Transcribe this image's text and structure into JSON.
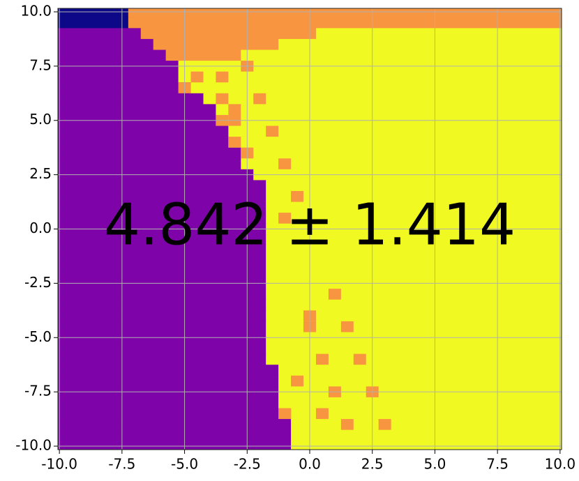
{
  "chart_data": {
    "type": "heatmap",
    "annotation": "4.842 ± 1.414",
    "xlim": [
      -10.06,
      10.06
    ],
    "ylim": [
      -10.16,
      10.16
    ],
    "xticks": [
      {
        "value": -10,
        "label": "-10.0"
      },
      -7.5,
      {
        "value": -5,
        "label": "-5.0"
      },
      -2.5,
      {
        "value": 0,
        "label": "0.0"
      },
      2.5,
      {
        "value": 5,
        "label": "5.0"
      },
      7.5,
      {
        "value": 10,
        "label": "10.0"
      }
    ],
    "yticks": [
      {
        "value": -10,
        "label": "-10.0"
      },
      -7.5,
      {
        "value": -5,
        "label": "-5.0"
      },
      -2.5,
      {
        "value": 0,
        "label": "0.0"
      },
      2.5,
      {
        "value": 5,
        "label": "5.0"
      },
      7.5,
      {
        "value": 10,
        "label": "10.0"
      }
    ],
    "grid": true,
    "cell": 0.5,
    "colors": [
      "#0d0887",
      "#7e03a8",
      "#f89540",
      "#f0f921"
    ],
    "rows": [
      {
        "y": 10.0,
        "ends": [
          -7.25,
          -7.25,
          10.25,
          10.25
        ]
      },
      {
        "y": 9.5,
        "ends": [
          -7.25,
          -7.25,
          10.25,
          10.25
        ]
      },
      {
        "y": 9.0,
        "ends": [
          -10.25,
          -6.75,
          0.25,
          10.25
        ]
      },
      {
        "y": 8.5,
        "ends": [
          -10.25,
          -6.25,
          -1.25,
          10.25
        ]
      },
      {
        "y": 8.0,
        "ends": [
          -10.25,
          -5.75,
          -2.75,
          10.25
        ]
      },
      {
        "y": 7.5,
        "ends": [
          -10.25,
          -5.25,
          -5.25,
          10.25
        ]
      },
      {
        "y": 7.0,
        "ends": [
          -10.25,
          -5.25,
          -5.25,
          10.25
        ]
      },
      {
        "y": 6.5,
        "ends": [
          -10.25,
          -4.75,
          -4.75,
          10.25
        ]
      },
      {
        "y": 6.0,
        "ends": [
          -10.25,
          -4.25,
          -4.25,
          10.25
        ]
      },
      {
        "y": 5.5,
        "ends": [
          -10.25,
          -3.75,
          -3.75,
          10.25
        ]
      },
      {
        "y": 5.0,
        "ends": [
          -10.25,
          -3.75,
          -3.75,
          10.25
        ]
      },
      {
        "y": 4.5,
        "ends": [
          -10.25,
          -3.25,
          -3.25,
          10.25
        ]
      },
      {
        "y": 4.0,
        "ends": [
          -10.25,
          -3.25,
          -3.25,
          10.25
        ]
      },
      {
        "y": 3.5,
        "ends": [
          -10.25,
          -2.75,
          -2.75,
          10.25
        ]
      },
      {
        "y": 3.0,
        "ends": [
          -10.25,
          -2.75,
          -2.75,
          10.25
        ]
      },
      {
        "y": 2.5,
        "ends": [
          -10.25,
          -2.25,
          -2.25,
          10.25
        ]
      },
      {
        "y": 2.0,
        "ends": [
          -10.25,
          -1.75,
          -1.75,
          10.25
        ]
      },
      {
        "y": 1.5,
        "ends": [
          -10.25,
          -1.75,
          -1.75,
          10.25
        ]
      },
      {
        "y": 1.0,
        "ends": [
          -10.25,
          -1.75,
          -1.75,
          10.25
        ]
      },
      {
        "y": 0.5,
        "ends": [
          -10.25,
          -1.75,
          -1.75,
          10.25
        ]
      },
      {
        "y": 0.0,
        "ends": [
          -10.25,
          -1.75,
          -1.75,
          10.25
        ]
      },
      {
        "y": -0.5,
        "ends": [
          -10.25,
          -1.75,
          -1.75,
          10.25
        ]
      },
      {
        "y": -1.0,
        "ends": [
          -10.25,
          -1.75,
          -1.75,
          10.25
        ]
      },
      {
        "y": -1.5,
        "ends": [
          -10.25,
          -1.75,
          -1.75,
          10.25
        ]
      },
      {
        "y": -2.0,
        "ends": [
          -10.25,
          -1.75,
          -1.75,
          10.25
        ]
      },
      {
        "y": -2.5,
        "ends": [
          -10.25,
          -1.75,
          -1.75,
          10.25
        ]
      },
      {
        "y": -3.0,
        "ends": [
          -10.25,
          -1.75,
          -1.75,
          10.25
        ]
      },
      {
        "y": -3.5,
        "ends": [
          -10.25,
          -1.75,
          -1.75,
          10.25
        ]
      },
      {
        "y": -4.0,
        "ends": [
          -10.25,
          -1.75,
          -1.75,
          10.25
        ]
      },
      {
        "y": -4.5,
        "ends": [
          -10.25,
          -1.75,
          -1.75,
          10.25
        ]
      },
      {
        "y": -5.0,
        "ends": [
          -10.25,
          -1.75,
          -1.75,
          10.25
        ]
      },
      {
        "y": -5.5,
        "ends": [
          -10.25,
          -1.75,
          -1.75,
          10.25
        ]
      },
      {
        "y": -6.0,
        "ends": [
          -10.25,
          -1.75,
          -1.75,
          10.25
        ]
      },
      {
        "y": -6.5,
        "ends": [
          -10.25,
          -1.25,
          -1.25,
          10.25
        ]
      },
      {
        "y": -7.0,
        "ends": [
          -10.25,
          -1.25,
          -1.25,
          10.25
        ]
      },
      {
        "y": -7.5,
        "ends": [
          -10.25,
          -1.25,
          -1.25,
          10.25
        ]
      },
      {
        "y": -8.0,
        "ends": [
          -10.25,
          -1.25,
          -1.25,
          10.25
        ]
      },
      {
        "y": -8.5,
        "ends": [
          -10.25,
          -0.75,
          -0.75,
          10.25
        ]
      },
      {
        "y": -9.0,
        "ends": [
          -10.25,
          -0.75,
          -0.75,
          10.25
        ]
      },
      {
        "y": -9.5,
        "ends": [
          -10.25,
          -0.75,
          -0.75,
          10.25
        ]
      },
      {
        "y": -10.0,
        "ends": [
          -10.25,
          -0.75,
          -0.75,
          10.25
        ]
      }
    ],
    "cells": {
      "x": [
        -4.5,
        -3.5,
        -2.5,
        -5.0,
        -3.5,
        -2.0,
        -3.0,
        -3.0,
        -3.5,
        -1.5,
        -3.0,
        -2.5,
        -1.0,
        -0.5,
        -1.0,
        1.0,
        0.0,
        0.0,
        1.5,
        0.5,
        2.0,
        -0.5,
        1.0,
        2.5,
        -1.0,
        0.5,
        1.5,
        3.0
      ],
      "y": [
        7.0,
        7.0,
        7.5,
        6.5,
        6.0,
        6.0,
        5.5,
        5.0,
        5.0,
        4.5,
        4.0,
        3.5,
        3.0,
        1.5,
        0.5,
        -3.0,
        -4.0,
        -4.5,
        -4.5,
        -6.0,
        -6.0,
        -7.0,
        -7.5,
        -7.5,
        -8.5,
        -8.5,
        -9.0,
        -9.0
      ]
    }
  }
}
